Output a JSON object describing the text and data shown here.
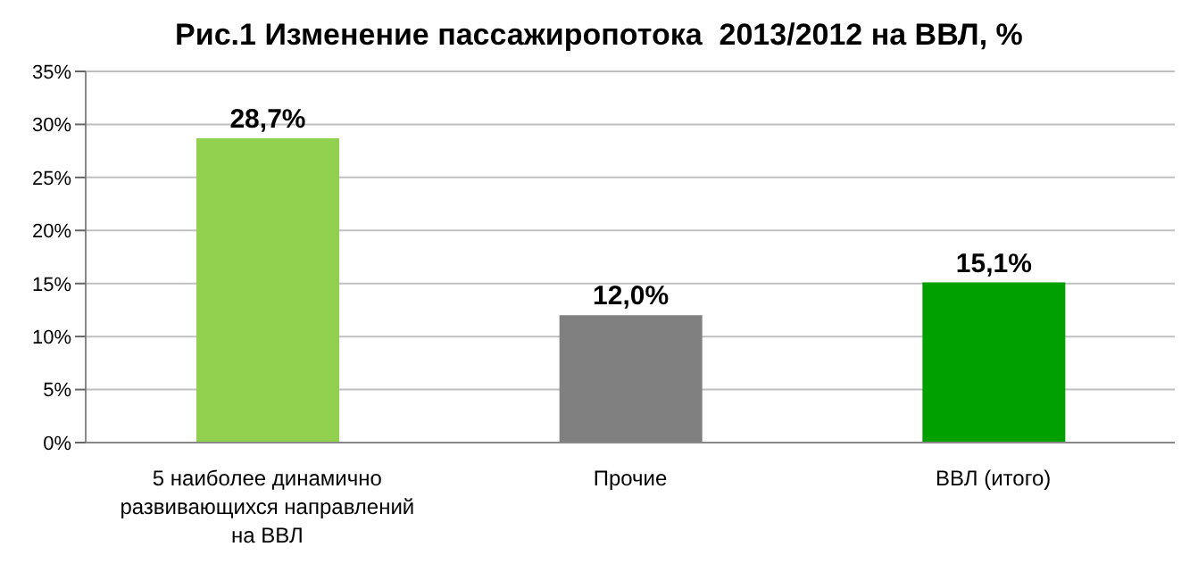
{
  "chart_data": {
    "type": "bar",
    "title": "Рис.1 Изменение пассажиропотока  2013/2012 на ВВЛ, %",
    "categories": [
      "5 наиболее динамично развивающихся направлений на ВВЛ",
      "Прочие",
      "ВВЛ (итого)"
    ],
    "values": [
      28.7,
      12.0,
      15.1
    ],
    "colors": [
      "#92d050",
      "#808080",
      "#00a000"
    ],
    "value_labels": [
      "28,7%",
      "12,0%",
      "15,1%"
    ],
    "ylim": [
      0,
      35
    ],
    "yticks": [
      {
        "value": 0,
        "label": "0%"
      },
      {
        "value": 5,
        "label": "5%"
      },
      {
        "value": 10,
        "label": "10%"
      },
      {
        "value": 15,
        "label": "15%"
      },
      {
        "value": 20,
        "label": "20%"
      },
      {
        "value": 25,
        "label": "25%"
      },
      {
        "value": 30,
        "label": "30%"
      },
      {
        "value": 35,
        "label": "35%"
      }
    ],
    "grid": "y"
  }
}
